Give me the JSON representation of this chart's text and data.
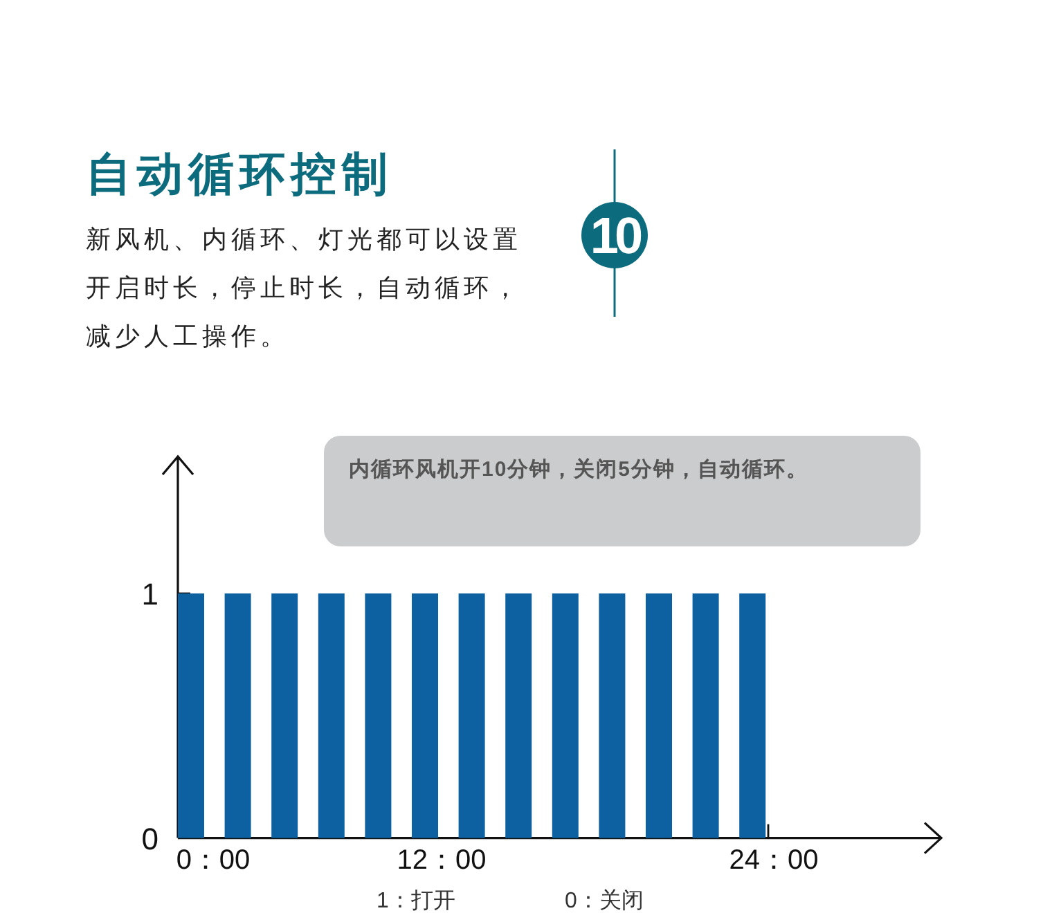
{
  "chart_data": {
    "type": "bar",
    "title": "自动循环控制",
    "subtitle": "新风机、内循环、灯光都可以设置开启时长，停止时长，自动循环，减少人工操作。",
    "annotations": [
      "10",
      "内循环风机开10分钟，关闭5分钟，自动循环。",
      "0：00",
      "12：00",
      "24：00",
      "1：打开",
      "0：关闭"
    ],
    "categories": [
      null,
      null,
      null,
      null,
      null,
      null,
      null,
      null,
      null,
      null,
      null,
      null,
      null
    ],
    "values": [
      1,
      1,
      1,
      1,
      1,
      1,
      1,
      1,
      1,
      1,
      1,
      1,
      1
    ],
    "color": "#0e61a0",
    "ylim": [
      0,
      1.56
    ],
    "yticks": [
      0,
      1
    ]
  }
}
